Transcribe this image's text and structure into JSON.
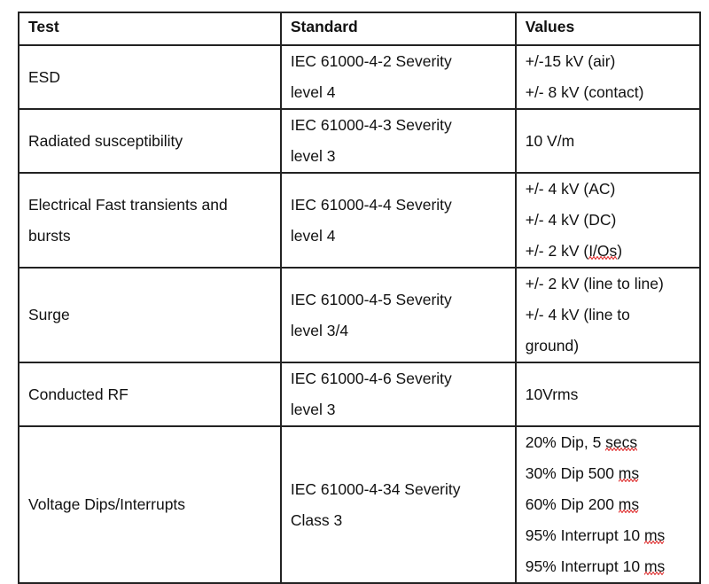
{
  "table": {
    "headers": [
      "Test",
      "Standard",
      "Values"
    ],
    "rows": [
      {
        "test": "ESD",
        "standard": [
          "IEC 61000-4-2 Severity",
          "level 4"
        ],
        "values": [
          {
            "text": "+/-15 kV (air)"
          },
          {
            "text": "+/- 8 kV (contact)"
          }
        ]
      },
      {
        "test": "Radiated susceptibility",
        "standard": [
          "IEC 61000-4-3 Severity",
          "level 3"
        ],
        "values": [
          {
            "text": "10 V/m"
          }
        ]
      },
      {
        "test": [
          "Electrical Fast transients and",
          "bursts"
        ],
        "standard": [
          "IEC 61000-4-4 Severity",
          "level 4"
        ],
        "values": [
          {
            "text": "+/- 4 kV (AC)"
          },
          {
            "text": "+/- 4 kV (DC)"
          },
          {
            "text": "+/- 2 kV (I/Os)",
            "flag": "I/Os"
          }
        ]
      },
      {
        "test": "Surge",
        "standard": [
          "IEC 61000-4-5 Severity",
          "level 3/4"
        ],
        "values": [
          {
            "text": "+/- 2 kV (line to line)"
          },
          {
            "text": "+/- 4 kV (line to"
          },
          {
            "text": "ground)"
          }
        ]
      },
      {
        "test": "Conducted RF",
        "standard": [
          "IEC 61000-4-6 Severity",
          "level 3"
        ],
        "values": [
          {
            "text": "10Vrms"
          }
        ]
      },
      {
        "test": "Voltage Dips/Interrupts",
        "standard": [
          "IEC 61000-4-34 Severity",
          "Class 3"
        ],
        "values": [
          {
            "text": "20% Dip, 5 secs",
            "flag": "secs"
          },
          {
            "text": "30% Dip 500 ms",
            "flag": "ms"
          },
          {
            "text": "60% Dip 200 ms",
            "flag": "ms"
          },
          {
            "text": "95% Interrupt 10 ms",
            "flag": "ms"
          },
          {
            "text": "95% Interrupt 10 ms",
            "flag": "ms"
          }
        ]
      }
    ]
  },
  "colors": {
    "border": "#222222",
    "spellcheck_underline": "#dd2222"
  }
}
